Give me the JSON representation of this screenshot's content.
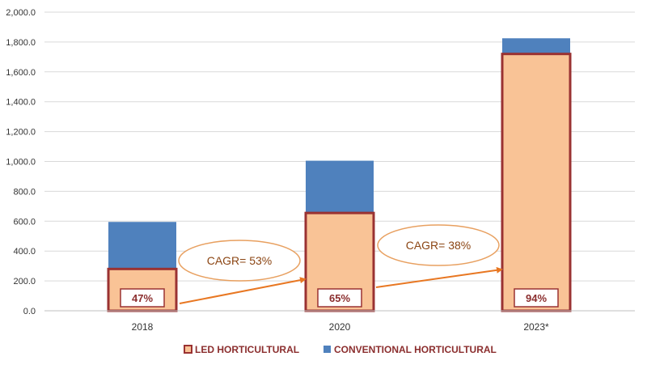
{
  "chart_data": {
    "type": "bar",
    "stacked": true,
    "categories": [
      "2018",
      "2020",
      "2023*"
    ],
    "series": [
      {
        "name": "LED HORTICULTURAL",
        "values": [
          280,
          655,
          1720
        ],
        "color": "#f9c396",
        "border": "#9a3232"
      },
      {
        "name": "CONVENTIONAL HORTICULTURAL",
        "values": [
          315,
          350,
          105
        ],
        "color": "#4f81bd"
      }
    ],
    "ylim": [
      0,
      2000
    ],
    "yticks": [
      "0.0",
      "200.0",
      "400.0",
      "600.0",
      "800.0",
      "1,000.0",
      "1,200.0",
      "1,400.0",
      "1,600.0",
      "1,800.0",
      "2,000.0"
    ],
    "ytick_values": [
      0,
      200,
      400,
      600,
      800,
      1000,
      1200,
      1400,
      1600,
      1800,
      2000
    ],
    "led_share_labels": [
      "47%",
      "65%",
      "94%"
    ],
    "annotations": [
      {
        "text": "CAGR= 53%",
        "from": "2018",
        "to": "2020"
      },
      {
        "text": "CAGR= 38%",
        "from": "2020",
        "to": "2023*"
      }
    ],
    "grid": true,
    "legend_position": "bottom",
    "arrow_color": "#e87722"
  }
}
